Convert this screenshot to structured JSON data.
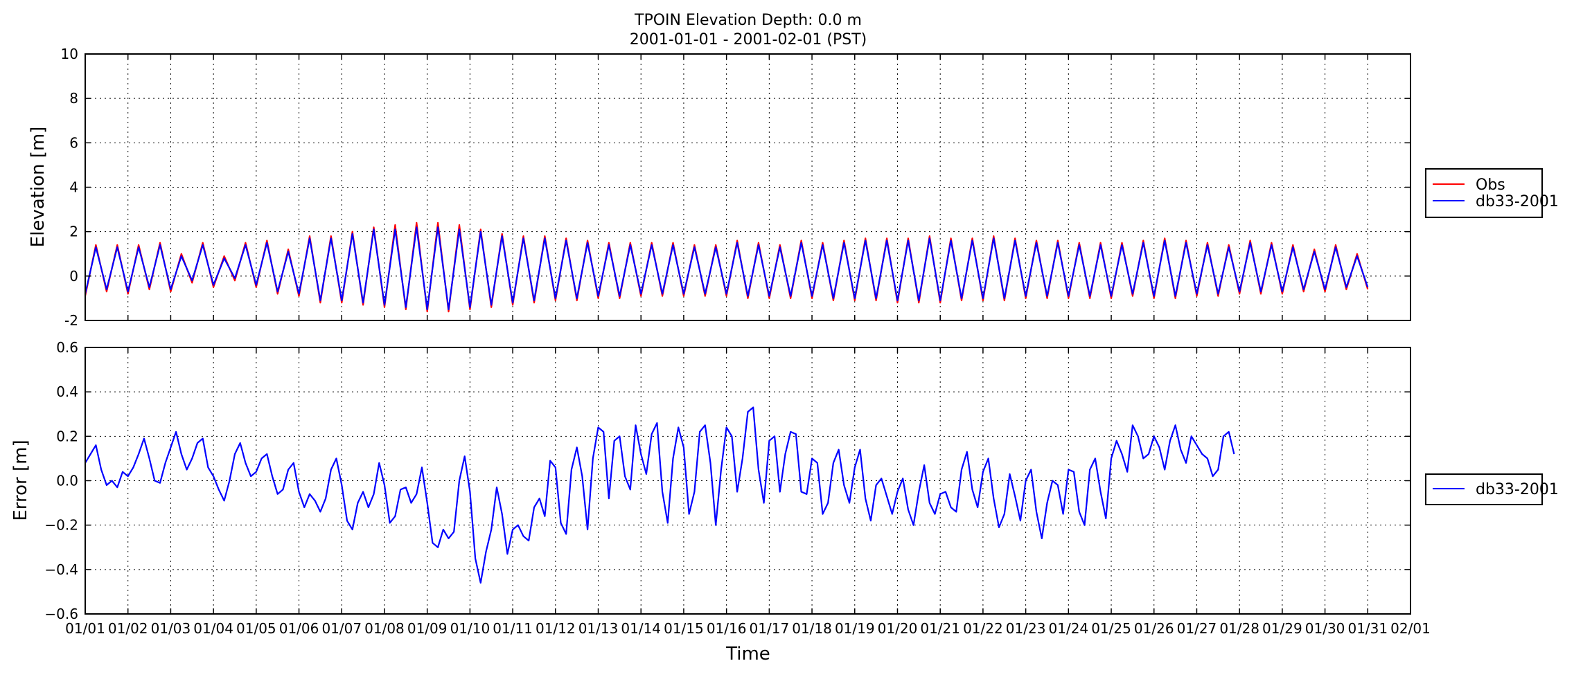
{
  "title": {
    "line1": "TPOIN Elevation Depth: 0.0 m",
    "line2": "2001-01-01 - 2001-02-01 (PST)"
  },
  "xlabel": "Time",
  "colors": {
    "obs": "#ff0000",
    "model": "#0000ff"
  },
  "x_tick_labels": [
    "01/01",
    "01/02",
    "01/03",
    "01/04",
    "01/05",
    "01/06",
    "01/07",
    "01/08",
    "01/09",
    "01/10",
    "01/11",
    "01/12",
    "01/13",
    "01/14",
    "01/15",
    "01/16",
    "01/17",
    "01/18",
    "01/19",
    "01/20",
    "01/21",
    "01/22",
    "01/23",
    "01/24",
    "01/25",
    "01/26",
    "01/27",
    "01/28",
    "01/29",
    "01/30",
    "01/31",
    "02/01"
  ],
  "chart_data": [
    {
      "type": "line",
      "panel": "elevation",
      "ylabel": "Elevation [m]",
      "ylim": [
        -2,
        10
      ],
      "yticks": [
        -2,
        0,
        2,
        4,
        6,
        8,
        10
      ],
      "xlim": [
        "2001-01-01",
        "2001-02-01"
      ],
      "grid": true,
      "legend_placement": "right",
      "series": [
        {
          "name": "Obs",
          "color": "#ff0000",
          "x_start": "2001-01-01 00:00",
          "step_hours": 6,
          "values": [
            -0.9,
            1.4,
            -0.7,
            1.4,
            -0.8,
            1.4,
            -0.6,
            1.5,
            -0.7,
            1.0,
            -0.3,
            1.5,
            -0.5,
            0.9,
            -0.2,
            1.5,
            -0.5,
            1.6,
            -0.8,
            1.2,
            -0.9,
            1.8,
            -1.2,
            1.8,
            -1.2,
            2.0,
            -1.3,
            2.2,
            -1.4,
            2.3,
            -1.5,
            2.4,
            -1.6,
            2.4,
            -1.6,
            2.3,
            -1.5,
            2.1,
            -1.4,
            1.9,
            -1.3,
            1.8,
            -1.2,
            1.8,
            -1.1,
            1.7,
            -1.1,
            1.6,
            -1.0,
            1.5,
            -1.0,
            1.5,
            -0.9,
            1.5,
            -0.9,
            1.5,
            -0.9,
            1.4,
            -0.9,
            1.4,
            -0.9,
            1.6,
            -1.0,
            1.5,
            -1.0,
            1.4,
            -1.0,
            1.6,
            -1.0,
            1.5,
            -1.1,
            1.6,
            -1.1,
            1.7,
            -1.1,
            1.7,
            -1.2,
            1.7,
            -1.2,
            1.8,
            -1.2,
            1.7,
            -1.1,
            1.7,
            -1.1,
            1.8,
            -1.1,
            1.7,
            -1.0,
            1.6,
            -1.0,
            1.6,
            -1.0,
            1.5,
            -1.0,
            1.5,
            -1.0,
            1.5,
            -0.9,
            1.6,
            -1.0,
            1.7,
            -1.0,
            1.6,
            -0.9,
            1.5,
            -0.9,
            1.4,
            -0.8,
            1.6,
            -0.8,
            1.5,
            -0.8,
            1.4,
            -0.7,
            1.2,
            -0.7,
            1.4,
            -0.6,
            1.0,
            -0.6
          ]
        },
        {
          "name": "db33-2001",
          "color": "#0000ff",
          "x_start": "2001-01-01 00:00",
          "step_hours": 6,
          "values": [
            -0.8,
            1.3,
            -0.6,
            1.3,
            -0.7,
            1.3,
            -0.5,
            1.4,
            -0.6,
            0.9,
            -0.2,
            1.4,
            -0.4,
            0.8,
            -0.1,
            1.4,
            -0.4,
            1.5,
            -0.7,
            1.1,
            -0.8,
            1.7,
            -1.1,
            1.7,
            -1.1,
            1.9,
            -1.2,
            2.1,
            -1.3,
            2.1,
            -1.4,
            2.2,
            -1.5,
            2.2,
            -1.5,
            2.1,
            -1.4,
            2.0,
            -1.3,
            1.8,
            -1.2,
            1.7,
            -1.1,
            1.7,
            -1.0,
            1.6,
            -1.0,
            1.5,
            -0.9,
            1.4,
            -0.9,
            1.4,
            -0.8,
            1.4,
            -0.8,
            1.4,
            -0.8,
            1.3,
            -0.8,
            1.3,
            -0.8,
            1.5,
            -0.9,
            1.4,
            -0.9,
            1.3,
            -0.9,
            1.5,
            -0.9,
            1.4,
            -1.0,
            1.5,
            -1.0,
            1.6,
            -1.0,
            1.6,
            -1.1,
            1.6,
            -1.1,
            1.7,
            -1.1,
            1.6,
            -1.0,
            1.6,
            -1.0,
            1.7,
            -1.0,
            1.6,
            -0.9,
            1.5,
            -0.9,
            1.5,
            -0.9,
            1.4,
            -0.9,
            1.4,
            -0.9,
            1.4,
            -0.8,
            1.5,
            -0.9,
            1.6,
            -0.9,
            1.5,
            -0.8,
            1.4,
            -0.8,
            1.3,
            -0.7,
            1.5,
            -0.7,
            1.4,
            -0.7,
            1.3,
            -0.6,
            1.1,
            -0.6,
            1.3,
            -0.5,
            0.9,
            -0.5
          ]
        }
      ]
    },
    {
      "type": "line",
      "panel": "error",
      "ylabel": "Error [m]",
      "xlabel": "Time",
      "ylim": [
        -0.6,
        0.6
      ],
      "yticks": [
        -0.6,
        -0.4,
        -0.2,
        0.0,
        0.2,
        0.4,
        0.6
      ],
      "xlim": [
        "2001-01-01",
        "2001-02-01"
      ],
      "grid": true,
      "legend_placement": "right",
      "series": [
        {
          "name": "db33-2001",
          "color": "#0000ff",
          "x_start": "2001-01-01 00:00",
          "step_hours": 3,
          "values": [
            0.08,
            0.12,
            0.16,
            0.05,
            -0.02,
            0.0,
            -0.03,
            0.04,
            0.02,
            0.06,
            0.12,
            0.19,
            0.1,
            0.0,
            -0.01,
            0.08,
            0.15,
            0.22,
            0.12,
            0.05,
            0.1,
            0.17,
            0.19,
            0.06,
            0.02,
            -0.04,
            -0.09,
            0.0,
            0.12,
            0.17,
            0.08,
            0.02,
            0.04,
            0.1,
            0.12,
            0.02,
            -0.06,
            -0.04,
            0.05,
            0.08,
            -0.05,
            -0.12,
            -0.06,
            -0.09,
            -0.14,
            -0.08,
            0.05,
            0.1,
            -0.02,
            -0.18,
            -0.22,
            -0.1,
            -0.05,
            -0.12,
            -0.06,
            0.08,
            -0.02,
            -0.19,
            -0.16,
            -0.04,
            -0.03,
            -0.1,
            -0.06,
            0.06,
            -0.1,
            -0.28,
            -0.3,
            -0.22,
            -0.26,
            -0.23,
            0.0,
            0.11,
            -0.05,
            -0.35,
            -0.46,
            -0.32,
            -0.22,
            -0.03,
            -0.15,
            -0.33,
            -0.22,
            -0.2,
            -0.25,
            -0.27,
            -0.12,
            -0.08,
            -0.16,
            0.09,
            0.06,
            -0.19,
            -0.24,
            0.05,
            0.15,
            0.02,
            -0.22,
            0.1,
            0.24,
            0.22,
            -0.08,
            0.18,
            0.2,
            0.02,
            -0.04,
            0.25,
            0.12,
            0.03,
            0.21,
            0.26,
            -0.05,
            -0.19,
            0.1,
            0.24,
            0.15,
            -0.15,
            -0.05,
            0.22,
            0.25,
            0.08,
            -0.2,
            0.05,
            0.24,
            0.2,
            -0.05,
            0.1,
            0.31,
            0.33,
            0.05,
            -0.1,
            0.18,
            0.2,
            -0.05,
            0.12,
            0.22,
            0.21,
            -0.05,
            -0.06,
            0.1,
            0.08,
            -0.15,
            -0.1,
            0.08,
            0.14,
            -0.02,
            -0.1,
            0.06,
            0.14,
            -0.08,
            -0.18,
            -0.02,
            0.01,
            -0.07,
            -0.15,
            -0.05,
            0.01,
            -0.13,
            -0.2,
            -0.05,
            0.07,
            -0.1,
            -0.15,
            -0.06,
            -0.05,
            -0.12,
            -0.14,
            0.05,
            0.13,
            -0.04,
            -0.12,
            0.04,
            0.1,
            -0.08,
            -0.21,
            -0.15,
            0.03,
            -0.07,
            -0.18,
            0.0,
            0.05,
            -0.14,
            -0.26,
            -0.1,
            0.0,
            -0.02,
            -0.15,
            0.05,
            0.04,
            -0.14,
            -0.2,
            0.05,
            0.1,
            -0.05,
            -0.17,
            0.1,
            0.18,
            0.12,
            0.04,
            0.25,
            0.2,
            0.1,
            0.12,
            0.2,
            0.15,
            0.05,
            0.18,
            0.25,
            0.14,
            0.08,
            0.2,
            0.16,
            0.12,
            0.1,
            0.02,
            0.05,
            0.2,
            0.22,
            0.12
          ]
        }
      ]
    }
  ]
}
